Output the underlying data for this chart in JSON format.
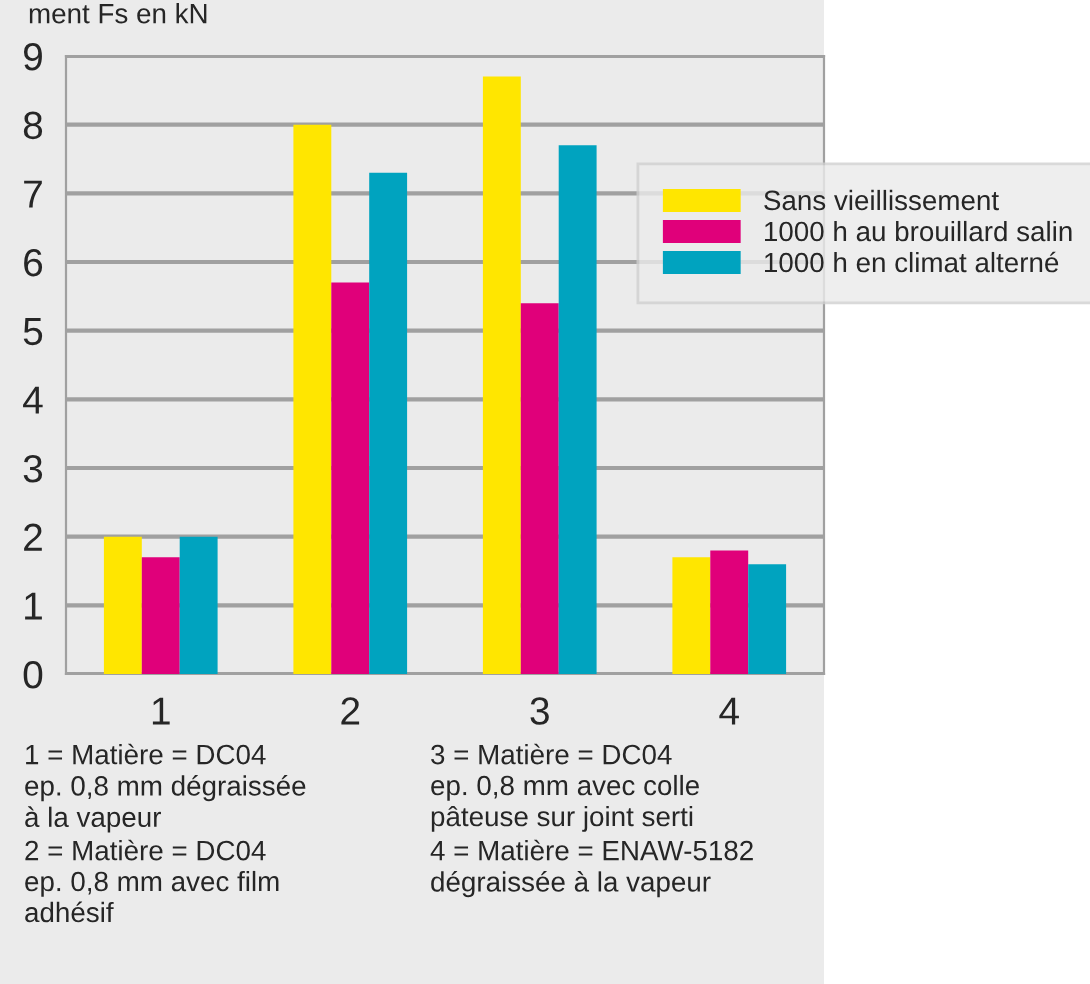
{
  "chart_data": {
    "type": "bar",
    "ylabel": "ment Fs en kN",
    "categories": [
      "1",
      "2",
      "3",
      "4"
    ],
    "series": [
      {
        "name": "Sans vieillissement",
        "color": "#ffe600",
        "values": [
          2.0,
          8.0,
          8.7,
          1.7
        ]
      },
      {
        "name": "1000 h au brouillard salin",
        "color": "#e0007a",
        "values": [
          1.7,
          5.7,
          5.4,
          1.8
        ]
      },
      {
        "name": "1000 h en climat alterné",
        "color": "#00a3bf",
        "values": [
          2.0,
          7.3,
          7.7,
          1.6
        ]
      }
    ],
    "ylim": [
      0,
      9
    ],
    "yticks": [
      0,
      1,
      2,
      3,
      4,
      5,
      6,
      7,
      8,
      9
    ],
    "grid": "y",
    "legend": "top right",
    "annotations": [
      "1 = Matière = DC04\nep. 0,8 mm dégraissée\nà la vapeur",
      "2 = Matière = DC04\nep. 0,8 mm avec film\nadhésif",
      "3 = Matière = DC04\nep. 0,8 mm avec colle\npâteuse sur joint serti",
      "4 = Matière = ENAW-5182\ndégraissée à la vapeur"
    ]
  }
}
